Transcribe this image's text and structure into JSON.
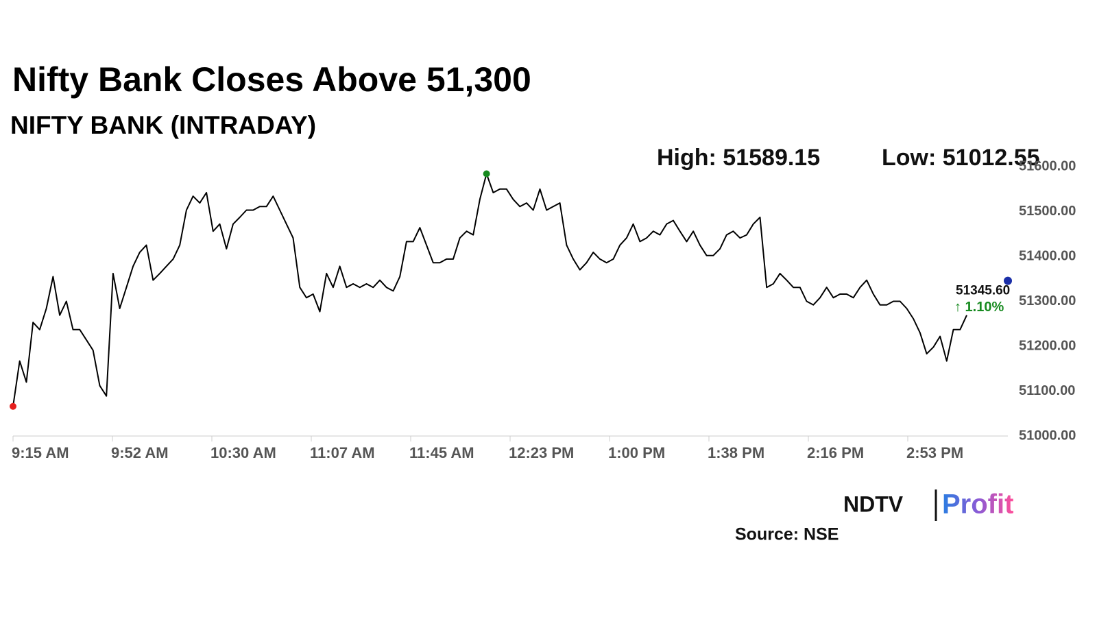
{
  "chart_data": {
    "type": "line",
    "title": "Nifty Bank Closes Above 51,300",
    "subtitle": "NIFTY BANK (INTRADAY)",
    "high_text": "High: 51589.15",
    "low_text": "Low: 51012.55",
    "last_value": 51345.6,
    "last_value_label": "51345.60",
    "change_label": "↑ 1.10%",
    "source": "Source: NSE",
    "logo": [
      "NDTV",
      "Profit"
    ],
    "x_labels": [
      "9:15 AM",
      "9:52 AM",
      "10:30 AM",
      "11:07 AM",
      "11:45 AM",
      "12:23 PM",
      "1:00 PM",
      "1:38 PM",
      "2:16 PM",
      "2:53 PM"
    ],
    "series": [
      {
        "color": "#000000",
        "values": [
          51066,
          51167,
          51120,
          51253,
          51237,
          51284,
          51355,
          51269,
          51300,
          51237,
          51237,
          51214,
          51191,
          51112,
          51089,
          51362,
          51284,
          51331,
          51378,
          51409,
          51425,
          51347,
          51362,
          51378,
          51394,
          51425,
          51503,
          51534,
          51519,
          51542,
          51456,
          51472,
          51417,
          51472,
          51487,
          51503,
          51503,
          51511,
          51511,
          51534,
          51503,
          51472,
          51441,
          51331,
          51308,
          51316,
          51277,
          51362,
          51331,
          51378,
          51331,
          51339,
          51331,
          51339,
          51331,
          51347,
          51331,
          51323,
          51355,
          51433,
          51433,
          51464,
          51425,
          51386,
          51386,
          51394,
          51394,
          51441,
          51456,
          51448,
          51527,
          51584,
          51542,
          51550,
          51550,
          51527,
          51511,
          51519,
          51503,
          51550,
          51503,
          51511,
          51519,
          51425,
          51394,
          51370,
          51386,
          51409,
          51394,
          51386,
          51394,
          51425,
          51441,
          51472,
          51433,
          51441,
          51456,
          51448,
          51472,
          51480,
          51456,
          51433,
          51456,
          51425,
          51402,
          51402,
          51417,
          51448,
          51456,
          51441,
          51448,
          51472,
          51487,
          51331,
          51339,
          51362,
          51347,
          51331,
          51331,
          51300,
          51292,
          51308,
          51331,
          51308,
          51316,
          51316,
          51308,
          51331,
          51347,
          51316,
          51292,
          51292,
          51300,
          51300,
          51284,
          51261,
          51230,
          51183,
          51198,
          51222,
          51167,
          51237,
          51237,
          51269
        ]
      }
    ],
    "ylim": [
      51000,
      51600
    ],
    "yticks": [
      {
        "value": 51000,
        "label": "51000.00"
      },
      {
        "value": 51100,
        "label": "51100.00"
      },
      {
        "value": 51200,
        "label": "51200.00"
      },
      {
        "value": 51300,
        "label": "51300.00"
      },
      {
        "value": 51400,
        "label": "51400.00"
      },
      {
        "value": 51500,
        "label": "51500.00"
      },
      {
        "value": 51600,
        "label": "51600.00"
      }
    ]
  }
}
